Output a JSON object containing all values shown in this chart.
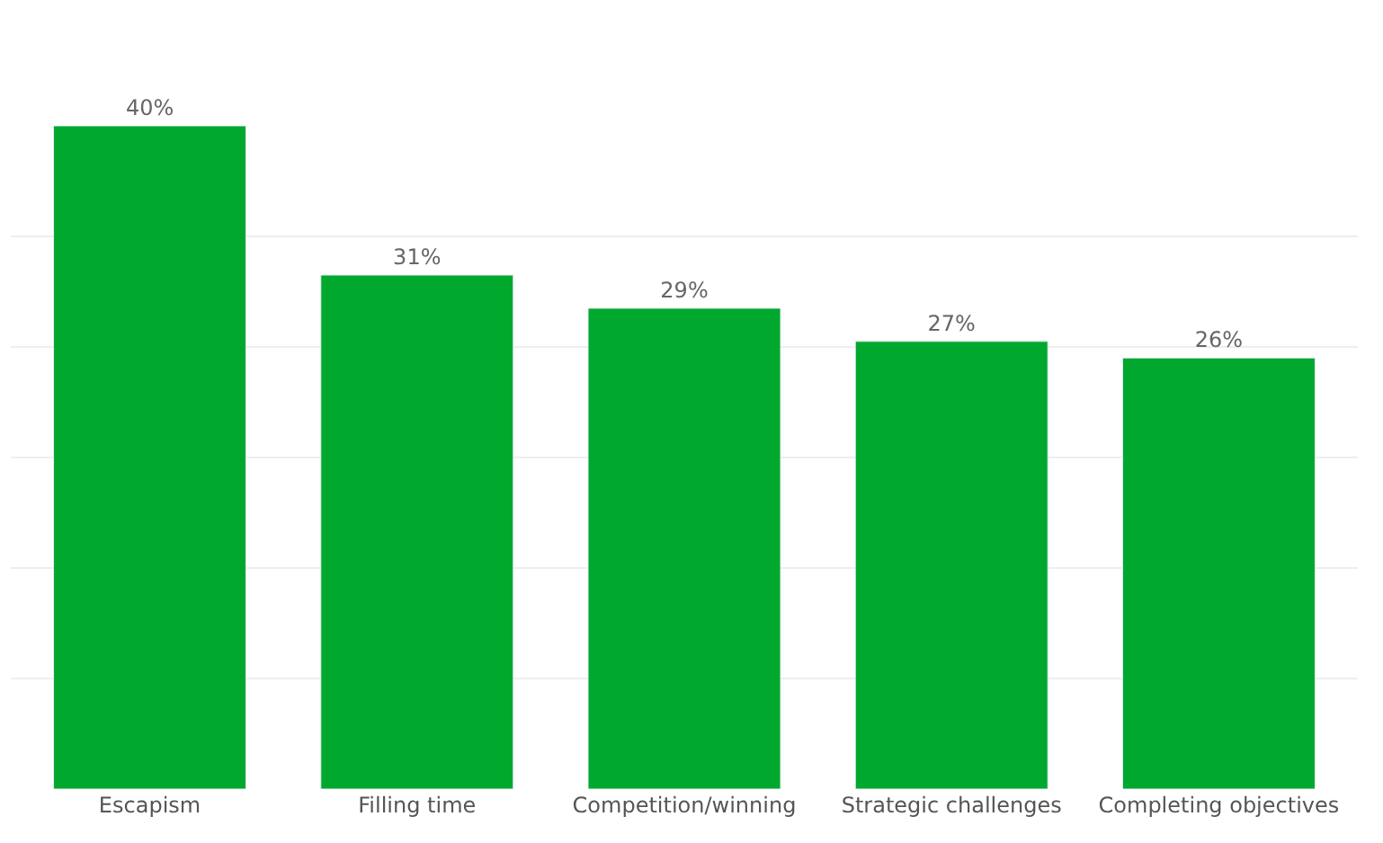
{
  "chart_data": {
    "type": "bar",
    "categories": [
      "Escapism",
      "Filling time",
      "Competition/winning",
      "Strategic challenges",
      "Completing objectives"
    ],
    "values": [
      40,
      31,
      29,
      27,
      26
    ],
    "value_labels": [
      "40%",
      "31%",
      "29%",
      "27%",
      "26%"
    ],
    "color": "#00a82d",
    "ylim": [
      0,
      40
    ],
    "yticks": [
      {
        "value": 6.67,
        "label": null
      },
      {
        "value": 13.33,
        "label": null
      },
      {
        "value": 20,
        "label": null
      },
      {
        "value": 26.67,
        "label": null
      },
      {
        "value": 33.33,
        "label": null
      }
    ],
    "grid": "y",
    "tick_labels": "x",
    "legend": false
  }
}
